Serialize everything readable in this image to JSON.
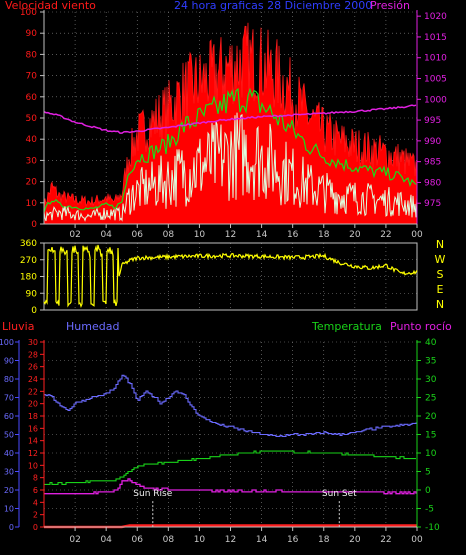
{
  "colors": {
    "wind": "#ff1a1a",
    "gust_fill": "#ff0000",
    "wind_avg": "#16e01a",
    "wind_min": "#dfffdf",
    "pressure": "#e020e0",
    "direction": "#ffff00",
    "title": "#2f3dff",
    "humidity": "#6b6bff",
    "temperature": "#19d219",
    "dewpoint": "#e020e0",
    "rain": "#ff2020",
    "grid": "#8a8a8a",
    "axis_left": "#4a4aff"
  },
  "chart_data": [
    {
      "type": "line",
      "panel": "wind",
      "title": "24 hora graficas  28 Diciembre 2000",
      "left_label": "Velocidad viento",
      "right_label": "Presión",
      "x_ticks": [
        "02",
        "04",
        "06",
        "08",
        "10",
        "12",
        "14",
        "16",
        "18",
        "20",
        "22",
        "00"
      ],
      "yleft_ticks": [
        "0",
        "10",
        "20",
        "30",
        "40",
        "50",
        "60",
        "70",
        "80",
        "90",
        "100"
      ],
      "yright_ticks": [
        "975",
        "980",
        "985",
        "990",
        "995",
        "1000",
        "1005",
        "1010",
        "1015",
        "1020"
      ],
      "ylim_left": [
        0,
        100
      ],
      "ylim_right": [
        970,
        1021
      ],
      "x_range": [
        0,
        24
      ],
      "grid": true,
      "series": [
        {
          "name": "Velocidad viento",
          "axis": "left",
          "style": "gust_band",
          "x": [
            0,
            0.5,
            1,
            2,
            3,
            4,
            4.5,
            5,
            5.5,
            6,
            7,
            8,
            9,
            10,
            11,
            12,
            13,
            14,
            15,
            16,
            17,
            18,
            19,
            20,
            21,
            22,
            23,
            24
          ],
          "values": [
            10,
            20,
            15,
            13,
            12,
            14,
            12,
            16,
            38,
            48,
            55,
            62,
            72,
            76,
            80,
            85,
            88,
            86,
            80,
            70,
            58,
            50,
            45,
            42,
            40,
            38,
            35,
            30
          ]
        },
        {
          "axis": "left",
          "style": "line",
          "x": [
            0,
            0.5,
            1,
            2,
            3,
            4,
            4.5,
            5,
            5.5,
            6,
            7,
            8,
            9,
            10,
            11,
            12,
            13,
            14,
            15,
            16,
            17,
            18,
            19,
            20,
            21,
            22,
            23,
            24
          ],
          "values": [
            6,
            12,
            9,
            8,
            7,
            9,
            8,
            10,
            26,
            31,
            34,
            38,
            46,
            50,
            54,
            58,
            60,
            56,
            50,
            44,
            37,
            32,
            29,
            27,
            25,
            24,
            22,
            18
          ]
        },
        {
          "axis": "left",
          "style": "noise",
          "x": [
            0,
            1,
            2,
            3,
            4,
            5,
            5.5,
            6,
            7,
            8,
            9,
            10,
            11,
            12,
            13,
            14,
            15,
            16,
            17,
            18,
            19,
            20,
            21,
            22,
            23,
            24
          ],
          "values": [
            4,
            6,
            5,
            4,
            6,
            5,
            14,
            17,
            20,
            23,
            27,
            30,
            33,
            36,
            37,
            35,
            30,
            25,
            20,
            17,
            15,
            14,
            13,
            12,
            11,
            9
          ]
        },
        {
          "name": "Presión",
          "axis": "right",
          "style": "line",
          "x": [
            0,
            1,
            2,
            3,
            4,
            5,
            6,
            7,
            8,
            9,
            10,
            11,
            12,
            13,
            14,
            15,
            16,
            17,
            18,
            19,
            20,
            21,
            22,
            23,
            24
          ],
          "values": [
            997,
            996,
            994.5,
            993.5,
            992.5,
            992,
            992.3,
            992.8,
            993.2,
            993.8,
            994.3,
            994.8,
            995.2,
            995.5,
            995.8,
            996,
            996.2,
            996.4,
            996.6,
            996.9,
            997.1,
            997.4,
            997.7,
            998.1,
            998.6
          ]
        }
      ]
    },
    {
      "type": "line",
      "panel": "direction",
      "right_label": [
        "N",
        "W",
        "S",
        "E",
        "N"
      ],
      "yleft_ticks": [
        "0",
        "90",
        "180",
        "270",
        "360"
      ],
      "ylim": [
        0,
        360
      ],
      "x_range": [
        0,
        24
      ],
      "series": [
        {
          "name": "direction",
          "style": "noise",
          "x": [
            0,
            0.3,
            0.6,
            1,
            1.4,
            1.8,
            2.2,
            2.6,
            3,
            3.4,
            3.8,
            4.2,
            4.5,
            4.8,
            5,
            5.5,
            6,
            8,
            10,
            12,
            14,
            16,
            17,
            18,
            19,
            20,
            21,
            22,
            23,
            24
          ],
          "values": [
            20,
            330,
            300,
            340,
            40,
            310,
            60,
            300,
            50,
            320,
            280,
            340,
            30,
            170,
            240,
            265,
            280,
            285,
            290,
            292,
            288,
            282,
            285,
            290,
            255,
            235,
            225,
            240,
            195,
            205
          ]
        }
      ]
    },
    {
      "type": "line",
      "panel": "climate",
      "labels": {
        "rain": "Lluvia",
        "humidity": "Humedad",
        "temperature": "Temperatura",
        "dewpoint": "Punto rocío"
      },
      "annotations": [
        {
          "text": "Sun Rise",
          "x": 7
        },
        {
          "text": "Sun Set",
          "x": 19
        }
      ],
      "x_ticks": [
        "02",
        "04",
        "06",
        "08",
        "10",
        "12",
        "14",
        "16",
        "18",
        "20",
        "22",
        "00"
      ],
      "y_humidity_ticks": [
        "0",
        "10",
        "20",
        "30",
        "40",
        "50",
        "60",
        "70",
        "80",
        "90",
        "100"
      ],
      "y_rain_ticks": [
        "0",
        "2",
        "4",
        "6",
        "8",
        "10",
        "12",
        "14",
        "16",
        "18",
        "20",
        "22",
        "24",
        "26",
        "28",
        "30"
      ],
      "y_temp_ticks": [
        "-10",
        "-5",
        "0",
        "5",
        "10",
        "15",
        "20",
        "25",
        "30",
        "35",
        "40"
      ],
      "ylim_humidity": [
        0,
        100
      ],
      "ylim_temp": [
        -10,
        40
      ],
      "x_range": [
        0,
        24
      ],
      "series": [
        {
          "name": "Humedad",
          "axis": "humidity",
          "x": [
            0,
            0.5,
            1,
            1.5,
            2,
            3,
            4,
            4.5,
            5,
            5.3,
            5.6,
            6,
            6.5,
            7,
            7.5,
            8,
            8.5,
            9,
            9.5,
            10,
            11,
            12,
            13,
            14,
            15,
            16,
            17,
            18,
            19,
            20,
            21,
            22,
            23,
            24
          ],
          "values": [
            72,
            70,
            66,
            63,
            67,
            70,
            72,
            75,
            82,
            80,
            76,
            68,
            73,
            71,
            67,
            70,
            74,
            71,
            65,
            60,
            56,
            54,
            52,
            50,
            49,
            50,
            50,
            51,
            50,
            51,
            53,
            54,
            55,
            56
          ]
        },
        {
          "name": "Temperatura",
          "axis": "temp",
          "x": [
            0,
            1,
            2,
            3,
            4,
            4.5,
            5,
            5.5,
            6,
            7,
            8,
            9,
            10,
            11,
            12,
            13,
            14,
            15,
            16,
            17,
            18,
            19,
            20,
            21,
            22,
            23,
            24
          ],
          "values": [
            1.5,
            1.8,
            2,
            2.3,
            2.5,
            2.8,
            3.5,
            5,
            6.5,
            7,
            7.5,
            8,
            8.5,
            9,
            9.5,
            10,
            10.5,
            10.5,
            10.3,
            10.2,
            10,
            9.8,
            9.5,
            9.2,
            9,
            8.7,
            8.5
          ]
        },
        {
          "name": "Punto rocío",
          "axis": "temp",
          "x": [
            0,
            1,
            2,
            3,
            4,
            4.7,
            5,
            5.4,
            6,
            6.5,
            7,
            8,
            9,
            10,
            12,
            14,
            16,
            18,
            20,
            22,
            24
          ],
          "values": [
            -1,
            -1,
            -1,
            -0.8,
            -0.5,
            0,
            2.5,
            2.8,
            1.5,
            0.5,
            0.3,
            0.2,
            0,
            -0.2,
            -0.3,
            -0.2,
            -0.3,
            -0.5,
            -0.5,
            -0.7,
            -0.8
          ]
        },
        {
          "name": "Lluvia",
          "axis": "humidity",
          "x": [
            0,
            5,
            5.5,
            24
          ],
          "values": [
            0,
            0,
            0.8,
            0.8
          ]
        }
      ]
    }
  ]
}
